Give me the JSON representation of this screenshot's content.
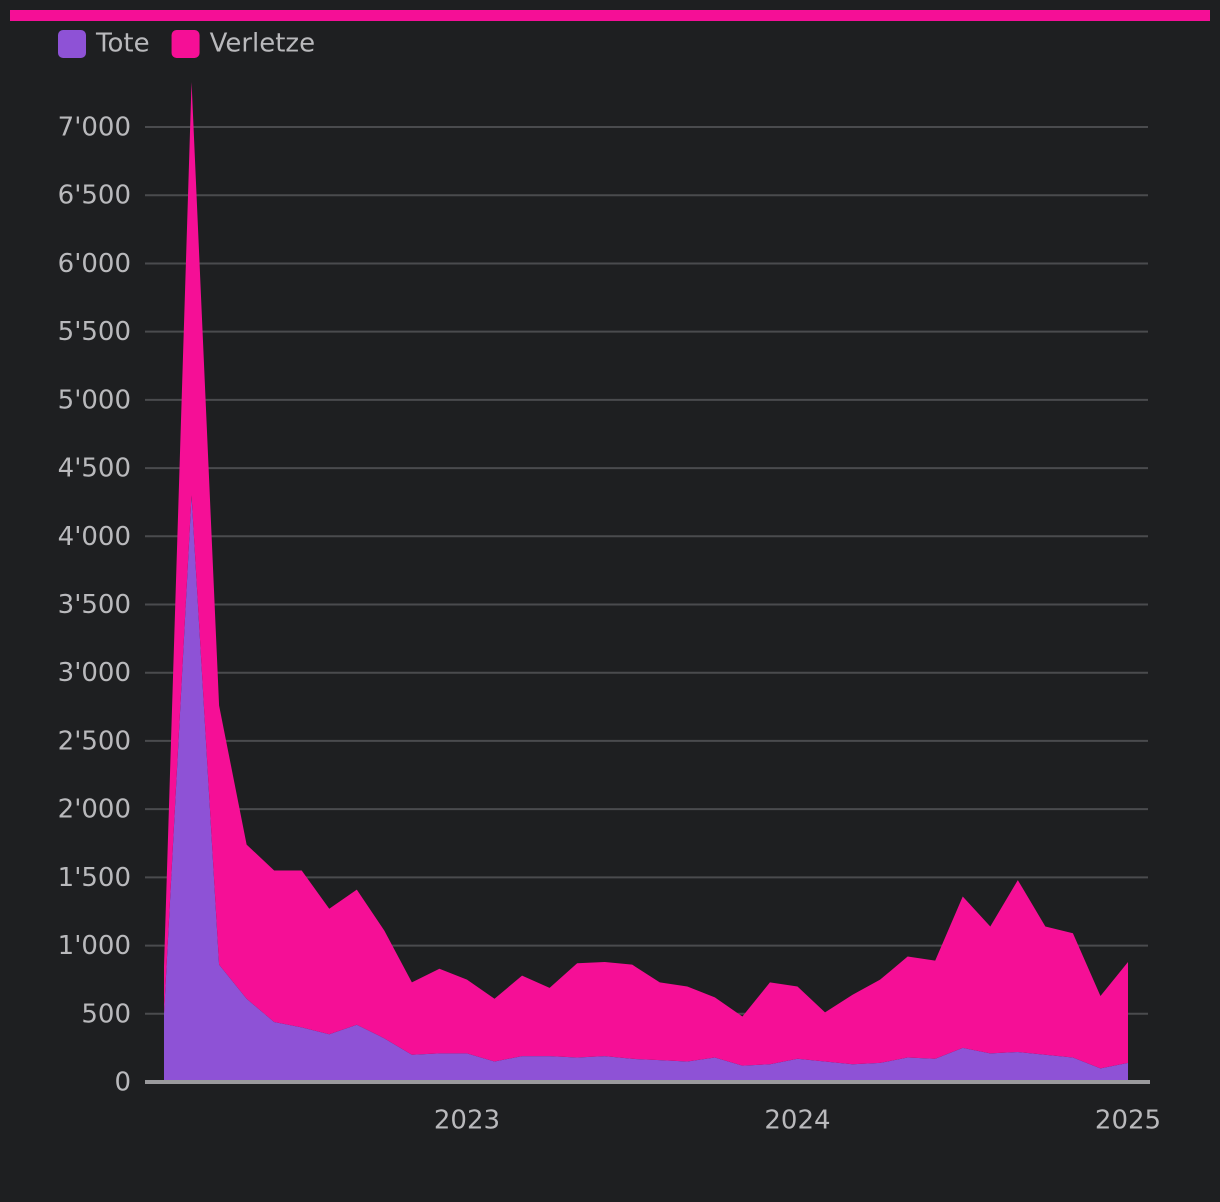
{
  "chart_data": {
    "type": "stacked_area",
    "x": [
      "2022-02",
      "2022-03",
      "2022-04",
      "2022-05",
      "2022-06",
      "2022-07",
      "2022-08",
      "2022-09",
      "2022-10",
      "2022-11",
      "2022-12",
      "2023-01",
      "2023-02",
      "2023-03",
      "2023-04",
      "2023-05",
      "2023-06",
      "2023-07",
      "2023-08",
      "2023-09",
      "2023-10",
      "2023-11",
      "2023-12",
      "2024-01",
      "2024-02",
      "2024-03",
      "2024-04",
      "2024-05",
      "2024-06",
      "2024-07",
      "2024-08",
      "2024-09",
      "2024-10",
      "2024-11",
      "2024-12",
      "2025-01"
    ],
    "series": [
      {
        "name": "Tote",
        "color": "#8e52d6",
        "values": [
          500,
          4300,
          860,
          610,
          440,
          400,
          350,
          420,
          320,
          200,
          210,
          210,
          150,
          190,
          190,
          180,
          190,
          170,
          160,
          150,
          180,
          120,
          130,
          170,
          150,
          130,
          140,
          180,
          170,
          250,
          210,
          220,
          200,
          180,
          100,
          140
        ]
      },
      {
        "name": "Verletze",
        "color": "#f50f96",
        "values": [
          350,
          3030,
          1900,
          1130,
          1110,
          1150,
          920,
          990,
          790,
          530,
          620,
          540,
          460,
          590,
          500,
          690,
          690,
          690,
          570,
          550,
          440,
          360,
          600,
          530,
          360,
          510,
          610,
          740,
          720,
          1110,
          930,
          1260,
          940,
          910,
          530,
          740
        ]
      }
    ],
    "xlim": [
      "2022-02",
      "2025-01"
    ],
    "xticks": [
      "2023",
      "2024",
      "2025"
    ],
    "ylim": [
      0,
      7330
    ],
    "yticks": [
      0,
      500,
      {
        "value": 1000,
        "label": "1'000"
      },
      {
        "value": 1500,
        "label": "1'500"
      },
      {
        "value": 2000,
        "label": "2'000"
      },
      {
        "value": 2500,
        "label": "2'500"
      },
      {
        "value": 3000,
        "label": "3'000"
      },
      {
        "value": 3500,
        "label": "3'500"
      },
      {
        "value": 4000,
        "label": "4'000"
      },
      {
        "value": 4500,
        "label": "4'500"
      },
      {
        "value": 5000,
        "label": "5'000"
      },
      {
        "value": 5500,
        "label": "5'500"
      },
      {
        "value": 6000,
        "label": "6'000"
      },
      {
        "value": 6500,
        "label": "6'500"
      },
      {
        "value": 7000,
        "label": "7'000"
      }
    ],
    "grid": true
  }
}
